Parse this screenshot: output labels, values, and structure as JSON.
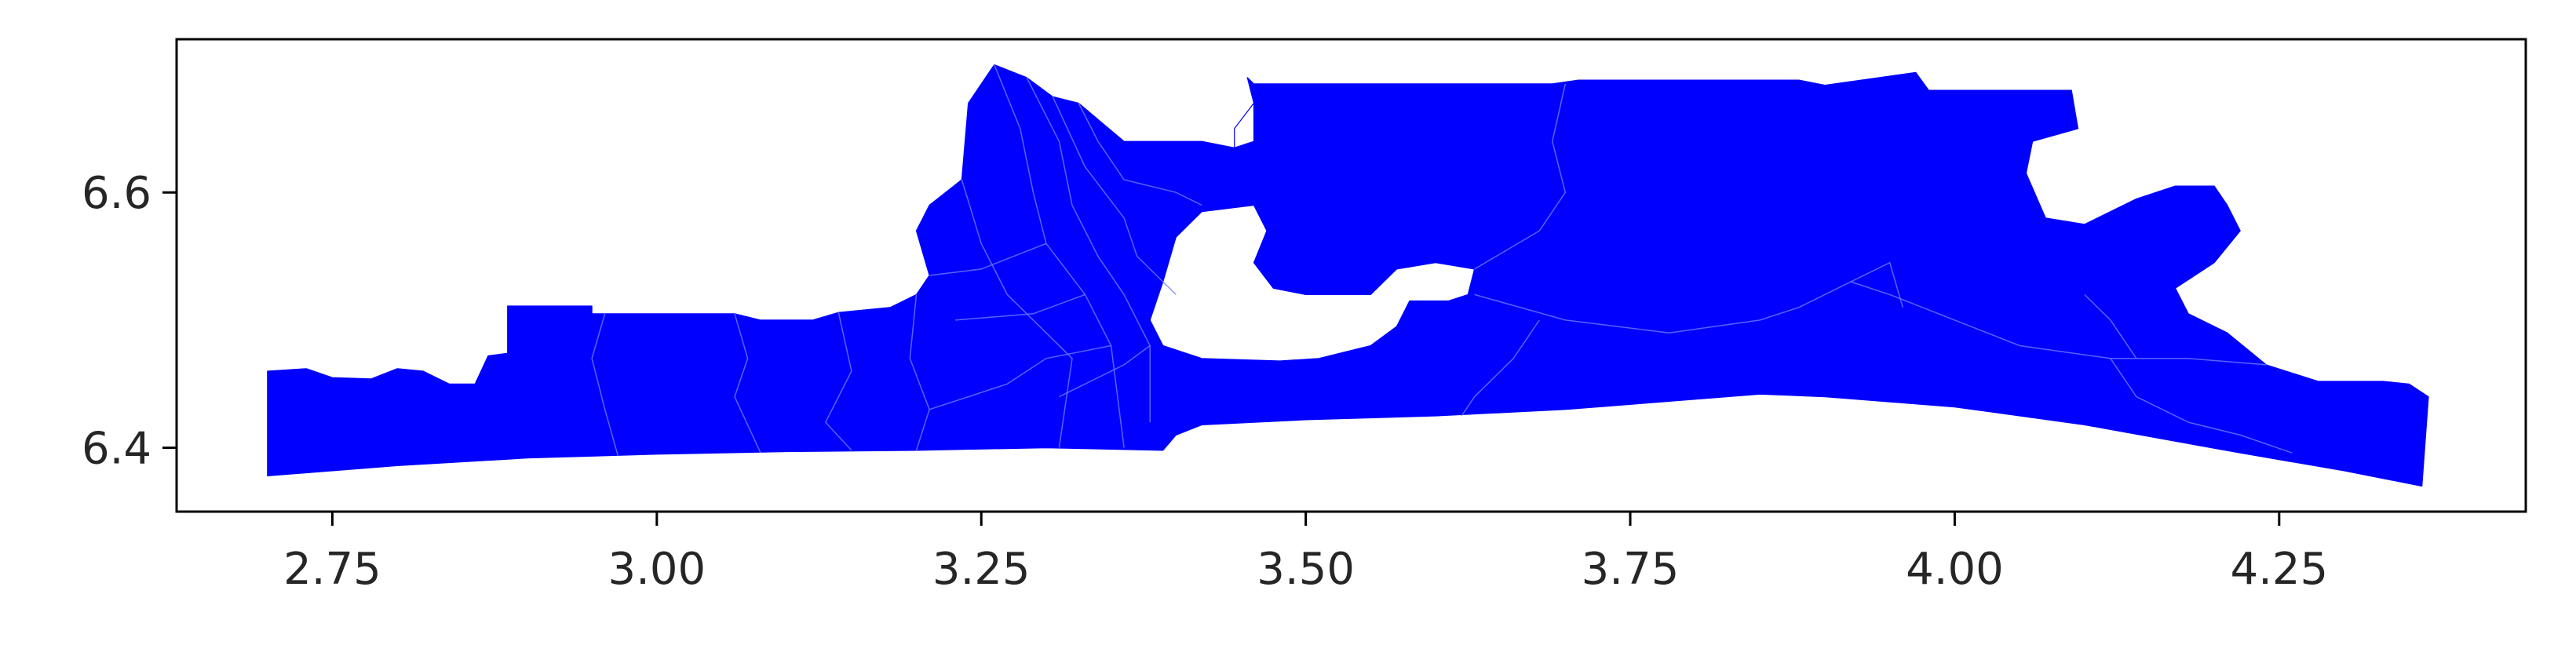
{
  "chart_data": {
    "type": "choropleth-map",
    "fill_color": "#0000ff",
    "boundary_color": "#6f7cff",
    "background_color": "#ffffff",
    "grid": false,
    "legend": "none",
    "xlim": [
      2.63,
      4.44
    ],
    "ylim": [
      6.35,
      6.72
    ],
    "x_ticks": [
      {
        "value": 2.75,
        "label": "2.75"
      },
      {
        "value": 3.0,
        "label": "3.00"
      },
      {
        "value": 3.25,
        "label": "3.25"
      },
      {
        "value": 3.5,
        "label": "3.50"
      },
      {
        "value": 3.75,
        "label": "3.75"
      },
      {
        "value": 4.0,
        "label": "4.00"
      },
      {
        "value": 4.25,
        "label": "4.25"
      }
    ],
    "y_ticks": [
      {
        "value": 6.4,
        "label": "6.4"
      },
      {
        "value": 6.6,
        "label": "6.6"
      }
    ],
    "outline": [
      [
        2.7,
        6.378
      ],
      [
        2.7,
        6.46
      ],
      [
        2.73,
        6.462
      ],
      [
        2.75,
        6.455
      ],
      [
        2.78,
        6.454
      ],
      [
        2.8,
        6.462
      ],
      [
        2.82,
        6.46
      ],
      [
        2.84,
        6.45
      ],
      [
        2.86,
        6.45
      ],
      [
        2.87,
        6.472
      ],
      [
        2.885,
        6.474
      ],
      [
        2.885,
        6.511
      ],
      [
        2.95,
        6.511
      ],
      [
        2.95,
        6.505
      ],
      [
        3.06,
        6.505
      ],
      [
        3.08,
        6.5
      ],
      [
        3.12,
        6.5
      ],
      [
        3.14,
        6.506
      ],
      [
        3.18,
        6.51
      ],
      [
        3.2,
        6.52
      ],
      [
        3.21,
        6.535
      ],
      [
        3.2,
        6.57
      ],
      [
        3.21,
        6.59
      ],
      [
        3.235,
        6.61
      ],
      [
        3.24,
        6.67
      ],
      [
        3.26,
        6.7
      ],
      [
        3.285,
        6.69
      ],
      [
        3.305,
        6.675
      ],
      [
        3.325,
        6.67
      ],
      [
        3.36,
        6.64
      ],
      [
        3.42,
        6.64
      ],
      [
        3.445,
        6.635
      ],
      [
        3.445,
        6.65
      ],
      [
        3.46,
        6.67
      ],
      [
        3.455,
        6.69
      ],
      [
        3.46,
        6.685
      ],
      [
        3.69,
        6.685
      ],
      [
        3.71,
        6.688
      ],
      [
        3.88,
        6.688
      ],
      [
        3.9,
        6.684
      ],
      [
        3.97,
        6.694
      ],
      [
        3.98,
        6.68
      ],
      [
        4.09,
        6.68
      ],
      [
        4.095,
        6.65
      ],
      [
        4.06,
        6.64
      ],
      [
        4.055,
        6.615
      ],
      [
        4.07,
        6.58
      ],
      [
        4.1,
        6.575
      ],
      [
        4.14,
        6.595
      ],
      [
        4.17,
        6.605
      ],
      [
        4.2,
        6.605
      ],
      [
        4.21,
        6.59
      ],
      [
        4.22,
        6.57
      ],
      [
        4.2,
        6.545
      ],
      [
        4.17,
        6.525
      ],
      [
        4.18,
        6.505
      ],
      [
        4.21,
        6.49
      ],
      [
        4.24,
        6.465
      ],
      [
        4.28,
        6.452
      ],
      [
        4.33,
        6.452
      ],
      [
        4.35,
        6.45
      ],
      [
        4.365,
        6.44
      ],
      [
        4.36,
        6.37
      ],
      [
        4.3,
        6.382
      ],
      [
        4.22,
        6.396
      ],
      [
        4.1,
        6.418
      ],
      [
        4.0,
        6.432
      ],
      [
        3.9,
        6.44
      ],
      [
        3.85,
        6.442
      ],
      [
        3.8,
        6.438
      ],
      [
        3.7,
        6.43
      ],
      [
        3.6,
        6.425
      ],
      [
        3.5,
        6.422
      ],
      [
        3.42,
        6.418
      ],
      [
        3.4,
        6.41
      ],
      [
        3.39,
        6.398
      ],
      [
        3.3,
        6.4
      ],
      [
        3.2,
        6.398
      ],
      [
        3.1,
        6.397
      ],
      [
        3.0,
        6.395
      ],
      [
        2.9,
        6.392
      ],
      [
        2.8,
        6.386
      ]
    ],
    "holes": [
      [
        [
          3.39,
          6.48
        ],
        [
          3.38,
          6.5
        ],
        [
          3.39,
          6.53
        ],
        [
          3.4,
          6.565
        ],
        [
          3.42,
          6.585
        ],
        [
          3.46,
          6.59
        ],
        [
          3.47,
          6.57
        ],
        [
          3.46,
          6.545
        ],
        [
          3.475,
          6.525
        ],
        [
          3.5,
          6.52
        ],
        [
          3.55,
          6.52
        ],
        [
          3.57,
          6.54
        ],
        [
          3.6,
          6.545
        ],
        [
          3.63,
          6.54
        ],
        [
          3.625,
          6.52
        ],
        [
          3.61,
          6.515
        ],
        [
          3.58,
          6.515
        ],
        [
          3.57,
          6.495
        ],
        [
          3.55,
          6.48
        ],
        [
          3.51,
          6.47
        ],
        [
          3.48,
          6.468
        ],
        [
          3.42,
          6.47
        ]
      ],
      [
        [
          3.445,
          6.635
        ],
        [
          3.445,
          6.65
        ],
        [
          3.46,
          6.67
        ],
        [
          3.46,
          6.64
        ]
      ]
    ],
    "internal_boundaries": [
      [
        [
          2.96,
          6.505
        ],
        [
          2.95,
          6.47
        ],
        [
          2.96,
          6.43
        ],
        [
          2.97,
          6.394
        ]
      ],
      [
        [
          3.06,
          6.505
        ],
        [
          3.07,
          6.47
        ],
        [
          3.06,
          6.44
        ],
        [
          3.08,
          6.396
        ]
      ],
      [
        [
          3.14,
          6.506
        ],
        [
          3.15,
          6.46
        ],
        [
          3.13,
          6.42
        ],
        [
          3.15,
          6.398
        ]
      ],
      [
        [
          3.2,
          6.52
        ],
        [
          3.195,
          6.47
        ],
        [
          3.21,
          6.43
        ],
        [
          3.2,
          6.398
        ]
      ],
      [
        [
          3.235,
          6.61
        ],
        [
          3.25,
          6.56
        ],
        [
          3.27,
          6.52
        ],
        [
          3.3,
          6.49
        ],
        [
          3.32,
          6.47
        ],
        [
          3.31,
          6.4
        ]
      ],
      [
        [
          3.26,
          6.7
        ],
        [
          3.28,
          6.65
        ],
        [
          3.29,
          6.6
        ],
        [
          3.3,
          6.56
        ],
        [
          3.33,
          6.52
        ],
        [
          3.35,
          6.48
        ],
        [
          3.36,
          6.4
        ]
      ],
      [
        [
          3.285,
          6.69
        ],
        [
          3.31,
          6.64
        ],
        [
          3.32,
          6.59
        ],
        [
          3.34,
          6.55
        ],
        [
          3.36,
          6.52
        ],
        [
          3.38,
          6.48
        ],
        [
          3.38,
          6.42
        ]
      ],
      [
        [
          3.305,
          6.675
        ],
        [
          3.33,
          6.62
        ],
        [
          3.36,
          6.58
        ],
        [
          3.37,
          6.55
        ],
        [
          3.4,
          6.52
        ]
      ],
      [
        [
          3.325,
          6.67
        ],
        [
          3.34,
          6.64
        ],
        [
          3.36,
          6.61
        ],
        [
          3.4,
          6.6
        ],
        [
          3.42,
          6.59
        ]
      ],
      [
        [
          3.3,
          6.56
        ],
        [
          3.25,
          6.54
        ],
        [
          3.21,
          6.535
        ]
      ],
      [
        [
          3.33,
          6.52
        ],
        [
          3.29,
          6.505
        ],
        [
          3.23,
          6.5
        ]
      ],
      [
        [
          3.35,
          6.48
        ],
        [
          3.3,
          6.47
        ],
        [
          3.27,
          6.45
        ],
        [
          3.24,
          6.44
        ],
        [
          3.21,
          6.43
        ]
      ],
      [
        [
          3.38,
          6.48
        ],
        [
          3.36,
          6.465
        ],
        [
          3.33,
          6.45
        ],
        [
          3.31,
          6.44
        ]
      ],
      [
        [
          3.7,
          6.685
        ],
        [
          3.69,
          6.64
        ],
        [
          3.7,
          6.6
        ],
        [
          3.68,
          6.57
        ],
        [
          3.63,
          6.54
        ]
      ],
      [
        [
          3.63,
          6.52
        ],
        [
          3.7,
          6.5
        ],
        [
          3.78,
          6.49
        ],
        [
          3.85,
          6.5
        ],
        [
          3.88,
          6.51
        ],
        [
          3.92,
          6.53
        ],
        [
          3.95,
          6.52
        ],
        [
          4.0,
          6.5
        ],
        [
          4.05,
          6.48
        ],
        [
          4.12,
          6.47
        ],
        [
          4.18,
          6.47
        ],
        [
          4.24,
          6.465
        ]
      ],
      [
        [
          3.68,
          6.5
        ],
        [
          3.66,
          6.47
        ],
        [
          3.63,
          6.44
        ],
        [
          3.62,
          6.425
        ]
      ],
      [
        [
          3.92,
          6.53
        ],
        [
          3.95,
          6.545
        ],
        [
          3.96,
          6.51
        ]
      ],
      [
        [
          4.12,
          6.47
        ],
        [
          4.14,
          6.44
        ],
        [
          4.18,
          6.42
        ],
        [
          4.22,
          6.41
        ],
        [
          4.26,
          6.396
        ]
      ],
      [
        [
          4.1,
          6.52
        ],
        [
          4.12,
          6.5
        ],
        [
          4.14,
          6.47
        ]
      ]
    ]
  }
}
